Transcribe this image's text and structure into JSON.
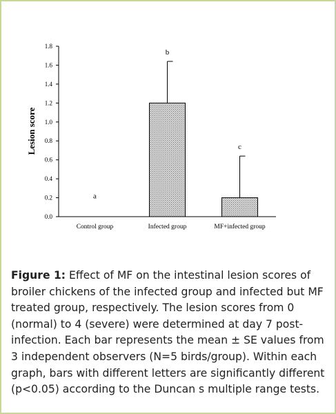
{
  "chart_data": {
    "type": "bar",
    "ylabel": "Lesion score",
    "xlabel": "",
    "ylim": [
      0,
      1.8
    ],
    "yticks": [
      "0.0",
      "0.2",
      "0.4",
      "0.6",
      "0.8",
      "1.0",
      "1.2",
      "1.4",
      "1.6",
      "1.8"
    ],
    "categories": [
      "Control group",
      "Infected group",
      "MF+infected group"
    ],
    "values": [
      0,
      1.2,
      0.2
    ],
    "errors": [
      0,
      0.44,
      0.44
    ],
    "significance_letters": [
      "a",
      "b",
      "c"
    ],
    "bar_fill": "dotted-gray",
    "grid": false,
    "legend": "none"
  },
  "caption": {
    "label": "Figure 1:",
    "text": "Effect of MF on the intestinal lesion scores of broiler chickens of the infected group and infected but MF treated group, respectively. The lesion scores from 0 (normal) to 4 (severe) were determined at day 7 post-infection. Each bar represents the mean ± SE values from 3 independent observers (N=5 birds/group). Within each graph, bars with different letters are significantly different (p<0.05) according to the Duncan s multiple range tests."
  },
  "colors": {
    "frame_border": "#c7d79a",
    "bar_pattern_dot": "#7a7a7a",
    "bar_pattern_bg": "#d8d8d8"
  }
}
